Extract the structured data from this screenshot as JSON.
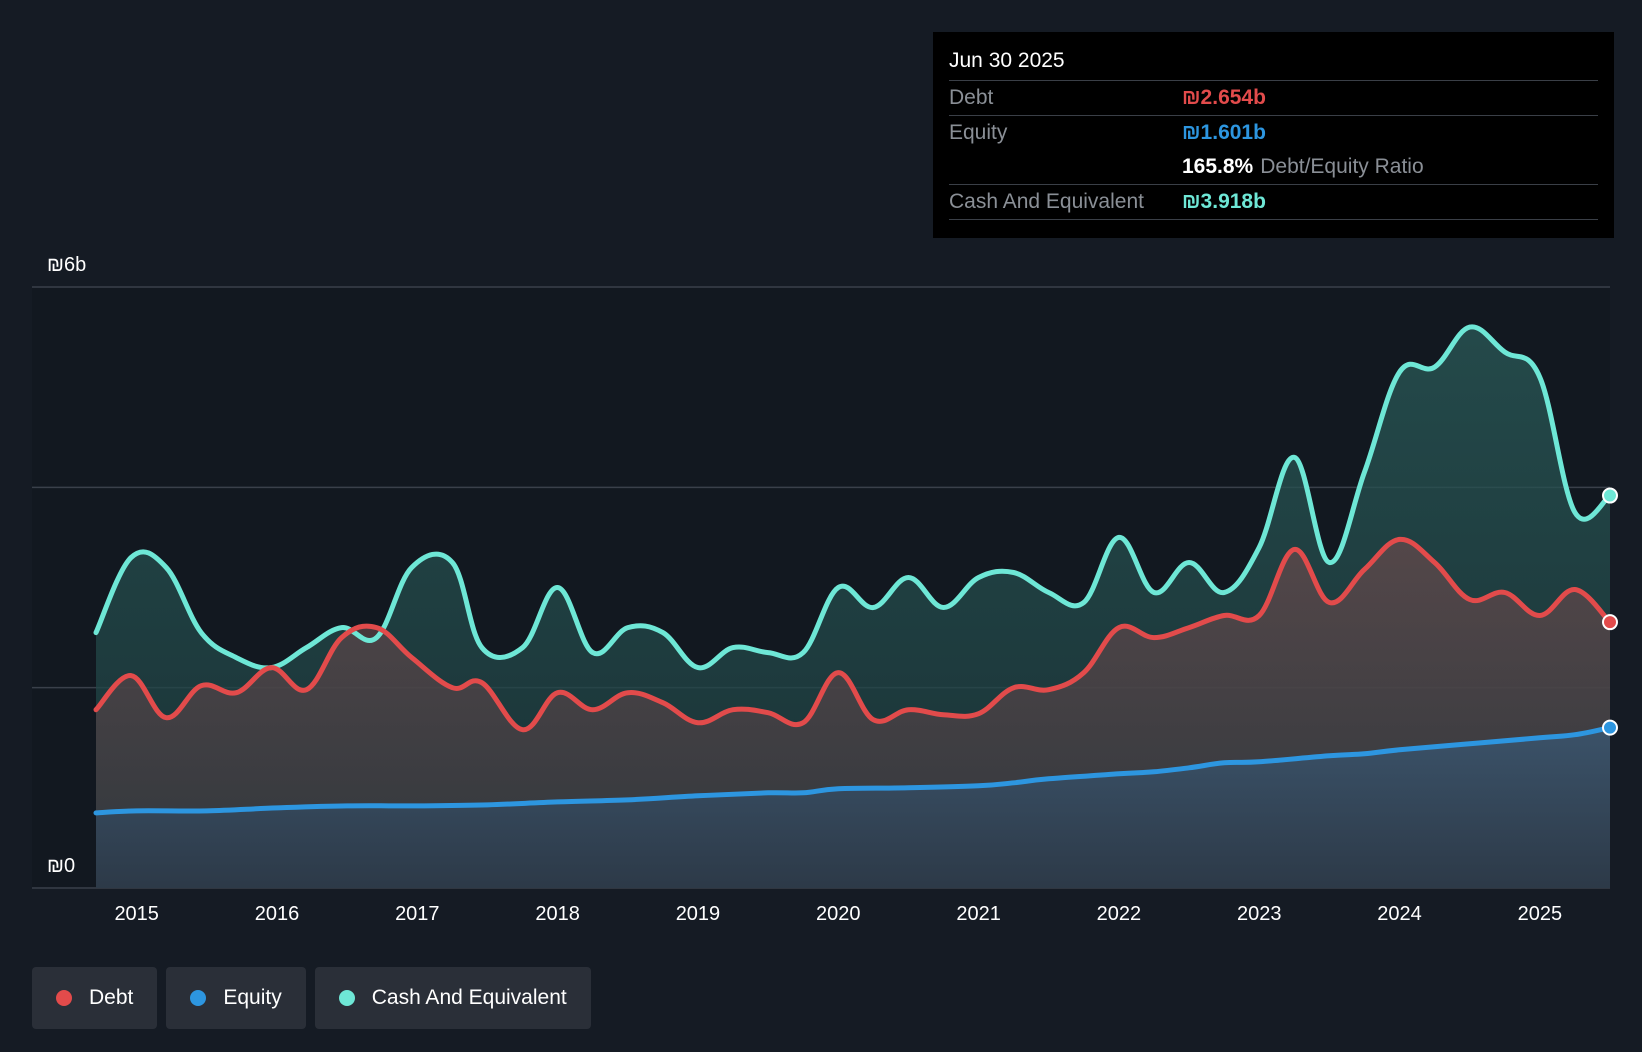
{
  "chart_data": {
    "type": "area",
    "currency_symbol": "₪",
    "y_axis": {
      "min": 0,
      "max": 6,
      "unit": "b",
      "top_label": "₪6b",
      "bottom_label": "₪0",
      "gridlines": [
        2,
        4,
        6
      ]
    },
    "x_axis": {
      "range": [
        2014.71,
        2025.5
      ],
      "ticks": [
        "2015",
        "2016",
        "2017",
        "2018",
        "2019",
        "2020",
        "2021",
        "2022",
        "2023",
        "2024",
        "2025"
      ]
    },
    "series": [
      {
        "name": "Cash And Equivalent",
        "color": "#6ee7d6",
        "points": [
          [
            2014.71,
            2.55
          ],
          [
            2014.96,
            3.3
          ],
          [
            2015.21,
            3.2
          ],
          [
            2015.46,
            2.55
          ],
          [
            2015.71,
            2.3
          ],
          [
            2015.96,
            2.2
          ],
          [
            2016.21,
            2.4
          ],
          [
            2016.46,
            2.6
          ],
          [
            2016.71,
            2.5
          ],
          [
            2016.96,
            3.2
          ],
          [
            2017.25,
            3.25
          ],
          [
            2017.46,
            2.4
          ],
          [
            2017.75,
            2.4
          ],
          [
            2018.0,
            3.0
          ],
          [
            2018.25,
            2.35
          ],
          [
            2018.5,
            2.6
          ],
          [
            2018.75,
            2.55
          ],
          [
            2019.0,
            2.2
          ],
          [
            2019.25,
            2.4
          ],
          [
            2019.5,
            2.35
          ],
          [
            2019.75,
            2.35
          ],
          [
            2020.0,
            3.0
          ],
          [
            2020.25,
            2.8
          ],
          [
            2020.5,
            3.1
          ],
          [
            2020.75,
            2.8
          ],
          [
            2021.0,
            3.1
          ],
          [
            2021.25,
            3.15
          ],
          [
            2021.5,
            2.95
          ],
          [
            2021.75,
            2.85
          ],
          [
            2022.0,
            3.5
          ],
          [
            2022.25,
            2.95
          ],
          [
            2022.5,
            3.25
          ],
          [
            2022.75,
            2.95
          ],
          [
            2023.0,
            3.4
          ],
          [
            2023.25,
            4.3
          ],
          [
            2023.5,
            3.25
          ],
          [
            2023.75,
            4.15
          ],
          [
            2024.0,
            5.15
          ],
          [
            2024.25,
            5.2
          ],
          [
            2024.5,
            5.6
          ],
          [
            2024.75,
            5.35
          ],
          [
            2025.0,
            5.1
          ],
          [
            2025.25,
            3.75
          ],
          [
            2025.5,
            3.918
          ]
        ]
      },
      {
        "name": "Debt",
        "color": "#e24b4b",
        "points": [
          [
            2014.71,
            1.78
          ],
          [
            2014.96,
            2.12
          ],
          [
            2015.21,
            1.7
          ],
          [
            2015.46,
            2.02
          ],
          [
            2015.71,
            1.95
          ],
          [
            2015.96,
            2.2
          ],
          [
            2016.21,
            1.98
          ],
          [
            2016.46,
            2.5
          ],
          [
            2016.71,
            2.6
          ],
          [
            2016.96,
            2.3
          ],
          [
            2017.25,
            2.0
          ],
          [
            2017.46,
            2.05
          ],
          [
            2017.75,
            1.58
          ],
          [
            2018.0,
            1.95
          ],
          [
            2018.25,
            1.78
          ],
          [
            2018.5,
            1.95
          ],
          [
            2018.75,
            1.85
          ],
          [
            2019.0,
            1.65
          ],
          [
            2019.25,
            1.78
          ],
          [
            2019.5,
            1.75
          ],
          [
            2019.75,
            1.65
          ],
          [
            2020.0,
            2.15
          ],
          [
            2020.25,
            1.68
          ],
          [
            2020.5,
            1.78
          ],
          [
            2020.75,
            1.73
          ],
          [
            2021.0,
            1.74
          ],
          [
            2021.25,
            2.0
          ],
          [
            2021.5,
            1.98
          ],
          [
            2021.75,
            2.15
          ],
          [
            2022.0,
            2.6
          ],
          [
            2022.25,
            2.5
          ],
          [
            2022.5,
            2.6
          ],
          [
            2022.75,
            2.72
          ],
          [
            2023.0,
            2.72
          ],
          [
            2023.25,
            3.38
          ],
          [
            2023.5,
            2.85
          ],
          [
            2023.75,
            3.18
          ],
          [
            2024.0,
            3.48
          ],
          [
            2024.25,
            3.25
          ],
          [
            2024.5,
            2.88
          ],
          [
            2024.75,
            2.95
          ],
          [
            2025.0,
            2.72
          ],
          [
            2025.25,
            2.98
          ],
          [
            2025.5,
            2.654
          ]
        ]
      },
      {
        "name": "Equity",
        "color": "#2d96e0",
        "points": [
          [
            2014.71,
            0.75
          ],
          [
            2015.0,
            0.77
          ],
          [
            2015.5,
            0.77
          ],
          [
            2016.0,
            0.8
          ],
          [
            2016.5,
            0.82
          ],
          [
            2017.0,
            0.82
          ],
          [
            2017.5,
            0.83
          ],
          [
            2018.0,
            0.86
          ],
          [
            2018.5,
            0.88
          ],
          [
            2019.0,
            0.92
          ],
          [
            2019.5,
            0.95
          ],
          [
            2019.75,
            0.95
          ],
          [
            2020.0,
            0.99
          ],
          [
            2020.5,
            1.0
          ],
          [
            2021.0,
            1.02
          ],
          [
            2021.25,
            1.05
          ],
          [
            2021.5,
            1.09
          ],
          [
            2022.0,
            1.14
          ],
          [
            2022.25,
            1.16
          ],
          [
            2022.5,
            1.2
          ],
          [
            2022.75,
            1.25
          ],
          [
            2023.0,
            1.26
          ],
          [
            2023.5,
            1.32
          ],
          [
            2023.75,
            1.34
          ],
          [
            2024.0,
            1.38
          ],
          [
            2024.5,
            1.44
          ],
          [
            2025.0,
            1.5
          ],
          [
            2025.25,
            1.53
          ],
          [
            2025.5,
            1.601
          ]
        ]
      }
    ],
    "tooltip": {
      "date": "Jun 30 2025",
      "debt_label": "Debt",
      "debt_value": "₪2.654b",
      "equity_label": "Equity",
      "equity_value": "₪1.601b",
      "ratio_value": "165.8%",
      "ratio_label": "Debt/Equity Ratio",
      "cash_label": "Cash And Equivalent",
      "cash_value": "₪3.918b"
    },
    "legend": [
      "Debt",
      "Equity",
      "Cash And Equivalent"
    ]
  },
  "colors": {
    "background": "#151b24",
    "debt": "#e24b4b",
    "equity": "#2d96e0",
    "cash": "#6ee7d6"
  }
}
